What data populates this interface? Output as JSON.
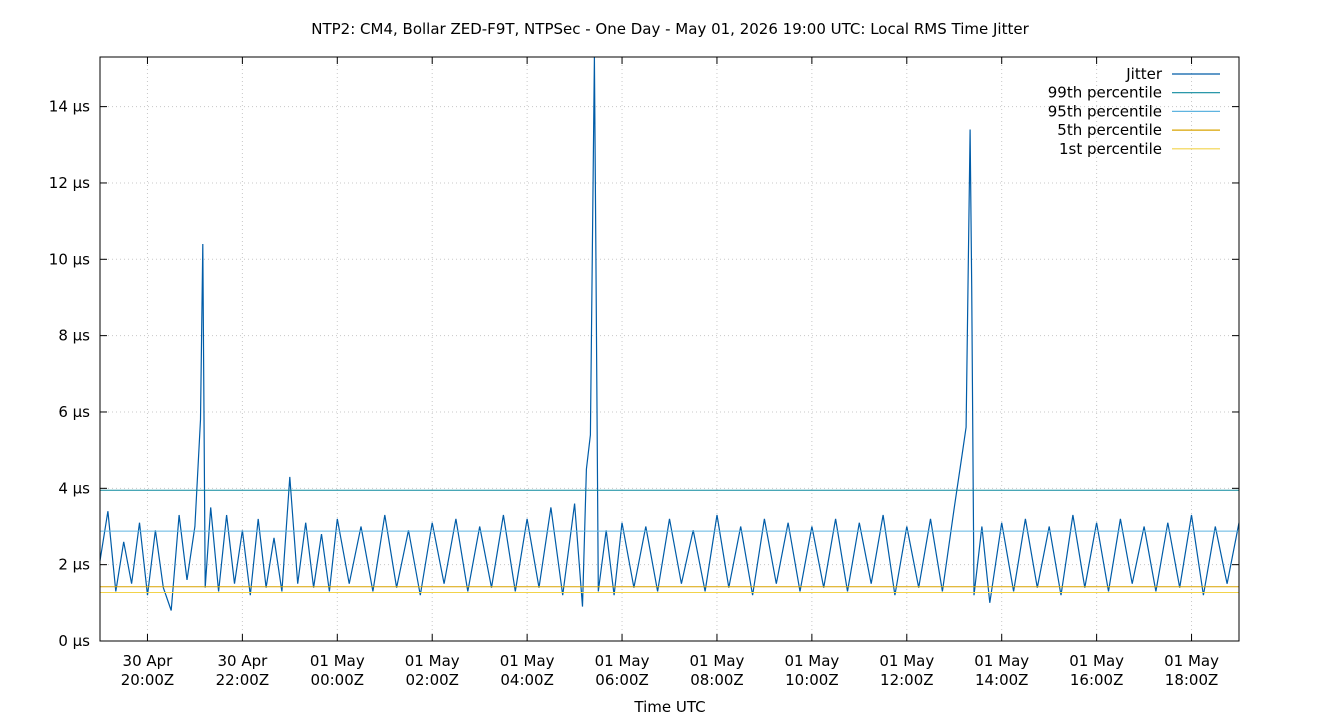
{
  "chart_data": {
    "type": "line",
    "title": "NTP2: CM4, Bollar ZED-F9T, NTPSec - One Day - May 01, 2026 19:00 UTC: Local RMS Time Jitter",
    "xlabel": "Time UTC",
    "ylabel": "",
    "unit": "µs",
    "grid": true,
    "legend_position": "top-right",
    "xlim": [
      "2026-04-30T19:00Z",
      "2026-05-01T19:00Z"
    ],
    "ylim": [
      0,
      15.3
    ],
    "y_ticks": [
      {
        "value": 0,
        "label": "0 µs"
      },
      {
        "value": 2,
        "label": "2 µs"
      },
      {
        "value": 4,
        "label": "4 µs"
      },
      {
        "value": 6,
        "label": "6 µs"
      },
      {
        "value": 8,
        "label": "8 µs"
      },
      {
        "value": 10,
        "label": "10 µs"
      },
      {
        "value": 12,
        "label": "12 µs"
      },
      {
        "value": 14,
        "label": "14 µs"
      }
    ],
    "x_ticks": [
      {
        "time": "2026-04-30T20:00Z",
        "line1": "30 Apr",
        "line2": "20:00Z"
      },
      {
        "time": "2026-04-30T22:00Z",
        "line1": "30 Apr",
        "line2": "22:00Z"
      },
      {
        "time": "2026-05-01T00:00Z",
        "line1": "01 May",
        "line2": "00:00Z"
      },
      {
        "time": "2026-05-01T02:00Z",
        "line1": "01 May",
        "line2": "02:00Z"
      },
      {
        "time": "2026-05-01T04:00Z",
        "line1": "01 May",
        "line2": "04:00Z"
      },
      {
        "time": "2026-05-01T06:00Z",
        "line1": "01 May",
        "line2": "06:00Z"
      },
      {
        "time": "2026-05-01T08:00Z",
        "line1": "01 May",
        "line2": "08:00Z"
      },
      {
        "time": "2026-05-01T10:00Z",
        "line1": "01 May",
        "line2": "10:00Z"
      },
      {
        "time": "2026-05-01T12:00Z",
        "line1": "01 May",
        "line2": "12:00Z"
      },
      {
        "time": "2026-05-01T14:00Z",
        "line1": "01 May",
        "line2": "14:00Z"
      },
      {
        "time": "2026-05-01T16:00Z",
        "line1": "01 May",
        "line2": "16:00Z"
      },
      {
        "time": "2026-05-01T18:00Z",
        "line1": "01 May",
        "line2": "18:00Z"
      }
    ],
    "series": [
      {
        "name": "Jitter",
        "color": "#005ca8",
        "points": [
          [
            "2026-04-30T19:00Z",
            2.1
          ],
          [
            "2026-04-30T19:10Z",
            3.4
          ],
          [
            "2026-04-30T19:20Z",
            1.3
          ],
          [
            "2026-04-30T19:30Z",
            2.6
          ],
          [
            "2026-04-30T19:40Z",
            1.5
          ],
          [
            "2026-04-30T19:50Z",
            3.1
          ],
          [
            "2026-04-30T20:00Z",
            1.2
          ],
          [
            "2026-04-30T20:10Z",
            2.9
          ],
          [
            "2026-04-30T20:20Z",
            1.4
          ],
          [
            "2026-04-30T20:30Z",
            0.8
          ],
          [
            "2026-04-30T20:40Z",
            3.3
          ],
          [
            "2026-04-30T20:50Z",
            1.6
          ],
          [
            "2026-04-30T21:00Z",
            3.0
          ],
          [
            "2026-04-30T21:07Z",
            5.8
          ],
          [
            "2026-04-30T21:10Z",
            10.4
          ],
          [
            "2026-04-30T21:13Z",
            1.4
          ],
          [
            "2026-04-30T21:20Z",
            3.5
          ],
          [
            "2026-04-30T21:30Z",
            1.3
          ],
          [
            "2026-04-30T21:40Z",
            3.3
          ],
          [
            "2026-04-30T21:50Z",
            1.5
          ],
          [
            "2026-04-30T22:00Z",
            2.9
          ],
          [
            "2026-04-30T22:10Z",
            1.2
          ],
          [
            "2026-04-30T22:20Z",
            3.2
          ],
          [
            "2026-04-30T22:30Z",
            1.4
          ],
          [
            "2026-04-30T22:40Z",
            2.7
          ],
          [
            "2026-04-30T22:50Z",
            1.3
          ],
          [
            "2026-04-30T23:00Z",
            4.3
          ],
          [
            "2026-04-30T23:10Z",
            1.5
          ],
          [
            "2026-04-30T23:20Z",
            3.1
          ],
          [
            "2026-04-30T23:30Z",
            1.4
          ],
          [
            "2026-04-30T23:40Z",
            2.8
          ],
          [
            "2026-04-30T23:50Z",
            1.3
          ],
          [
            "2026-05-01T00:00Z",
            3.2
          ],
          [
            "2026-05-01T00:15Z",
            1.5
          ],
          [
            "2026-05-01T00:30Z",
            3.0
          ],
          [
            "2026-05-01T00:45Z",
            1.3
          ],
          [
            "2026-05-01T01:00Z",
            3.3
          ],
          [
            "2026-05-01T01:15Z",
            1.4
          ],
          [
            "2026-05-01T01:30Z",
            2.9
          ],
          [
            "2026-05-01T01:45Z",
            1.2
          ],
          [
            "2026-05-01T02:00Z",
            3.1
          ],
          [
            "2026-05-01T02:15Z",
            1.5
          ],
          [
            "2026-05-01T02:30Z",
            3.2
          ],
          [
            "2026-05-01T02:45Z",
            1.3
          ],
          [
            "2026-05-01T03:00Z",
            3.0
          ],
          [
            "2026-05-01T03:15Z",
            1.4
          ],
          [
            "2026-05-01T03:30Z",
            3.3
          ],
          [
            "2026-05-01T03:45Z",
            1.3
          ],
          [
            "2026-05-01T04:00Z",
            3.2
          ],
          [
            "2026-05-01T04:15Z",
            1.4
          ],
          [
            "2026-05-01T04:30Z",
            3.5
          ],
          [
            "2026-05-01T04:45Z",
            1.2
          ],
          [
            "2026-05-01T05:00Z",
            3.6
          ],
          [
            "2026-05-01T05:10Z",
            0.9
          ],
          [
            "2026-05-01T05:15Z",
            4.5
          ],
          [
            "2026-05-01T05:20Z",
            5.4
          ],
          [
            "2026-05-01T05:25Z",
            15.3
          ],
          [
            "2026-05-01T05:27Z",
            10.1
          ],
          [
            "2026-05-01T05:30Z",
            1.3
          ],
          [
            "2026-05-01T05:40Z",
            2.9
          ],
          [
            "2026-05-01T05:50Z",
            1.2
          ],
          [
            "2026-05-01T06:00Z",
            3.1
          ],
          [
            "2026-05-01T06:15Z",
            1.4
          ],
          [
            "2026-05-01T06:30Z",
            3.0
          ],
          [
            "2026-05-01T06:45Z",
            1.3
          ],
          [
            "2026-05-01T07:00Z",
            3.2
          ],
          [
            "2026-05-01T07:15Z",
            1.5
          ],
          [
            "2026-05-01T07:30Z",
            2.9
          ],
          [
            "2026-05-01T07:45Z",
            1.3
          ],
          [
            "2026-05-01T08:00Z",
            3.3
          ],
          [
            "2026-05-01T08:15Z",
            1.4
          ],
          [
            "2026-05-01T08:30Z",
            3.0
          ],
          [
            "2026-05-01T08:45Z",
            1.2
          ],
          [
            "2026-05-01T09:00Z",
            3.2
          ],
          [
            "2026-05-01T09:15Z",
            1.5
          ],
          [
            "2026-05-01T09:30Z",
            3.1
          ],
          [
            "2026-05-01T09:45Z",
            1.3
          ],
          [
            "2026-05-01T10:00Z",
            3.0
          ],
          [
            "2026-05-01T10:15Z",
            1.4
          ],
          [
            "2026-05-01T10:30Z",
            3.2
          ],
          [
            "2026-05-01T10:45Z",
            1.3
          ],
          [
            "2026-05-01T11:00Z",
            3.1
          ],
          [
            "2026-05-01T11:15Z",
            1.5
          ],
          [
            "2026-05-01T11:30Z",
            3.3
          ],
          [
            "2026-05-01T11:45Z",
            1.2
          ],
          [
            "2026-05-01T12:00Z",
            3.0
          ],
          [
            "2026-05-01T12:15Z",
            1.4
          ],
          [
            "2026-05-01T12:30Z",
            3.2
          ],
          [
            "2026-05-01T12:45Z",
            1.3
          ],
          [
            "2026-05-01T13:00Z",
            3.5
          ],
          [
            "2026-05-01T13:10Z",
            4.9
          ],
          [
            "2026-05-01T13:15Z",
            5.6
          ],
          [
            "2026-05-01T13:20Z",
            13.4
          ],
          [
            "2026-05-01T13:22Z",
            9.3
          ],
          [
            "2026-05-01T13:25Z",
            1.2
          ],
          [
            "2026-05-01T13:35Z",
            3.0
          ],
          [
            "2026-05-01T13:45Z",
            1.0
          ],
          [
            "2026-05-01T14:00Z",
            3.1
          ],
          [
            "2026-05-01T14:15Z",
            1.3
          ],
          [
            "2026-05-01T14:30Z",
            3.2
          ],
          [
            "2026-05-01T14:45Z",
            1.4
          ],
          [
            "2026-05-01T15:00Z",
            3.0
          ],
          [
            "2026-05-01T15:15Z",
            1.2
          ],
          [
            "2026-05-01T15:30Z",
            3.3
          ],
          [
            "2026-05-01T15:45Z",
            1.4
          ],
          [
            "2026-05-01T16:00Z",
            3.1
          ],
          [
            "2026-05-01T16:15Z",
            1.3
          ],
          [
            "2026-05-01T16:30Z",
            3.2
          ],
          [
            "2026-05-01T16:45Z",
            1.5
          ],
          [
            "2026-05-01T17:00Z",
            3.0
          ],
          [
            "2026-05-01T17:15Z",
            1.3
          ],
          [
            "2026-05-01T17:30Z",
            3.1
          ],
          [
            "2026-05-01T17:45Z",
            1.4
          ],
          [
            "2026-05-01T18:00Z",
            3.3
          ],
          [
            "2026-05-01T18:15Z",
            1.2
          ],
          [
            "2026-05-01T18:30Z",
            3.0
          ],
          [
            "2026-05-01T18:45Z",
            1.5
          ],
          [
            "2026-05-01T19:00Z",
            3.1
          ]
        ]
      },
      {
        "name": "99th percentile",
        "color": "#0d8a9e",
        "value": 3.95
      },
      {
        "name": "95th percentile",
        "color": "#5fb4e0",
        "value": 2.88
      },
      {
        "name": "5th percentile",
        "color": "#d9a400",
        "value": 1.42
      },
      {
        "name": "1st percentile",
        "color": "#f2d34a",
        "value": 1.27
      }
    ]
  }
}
